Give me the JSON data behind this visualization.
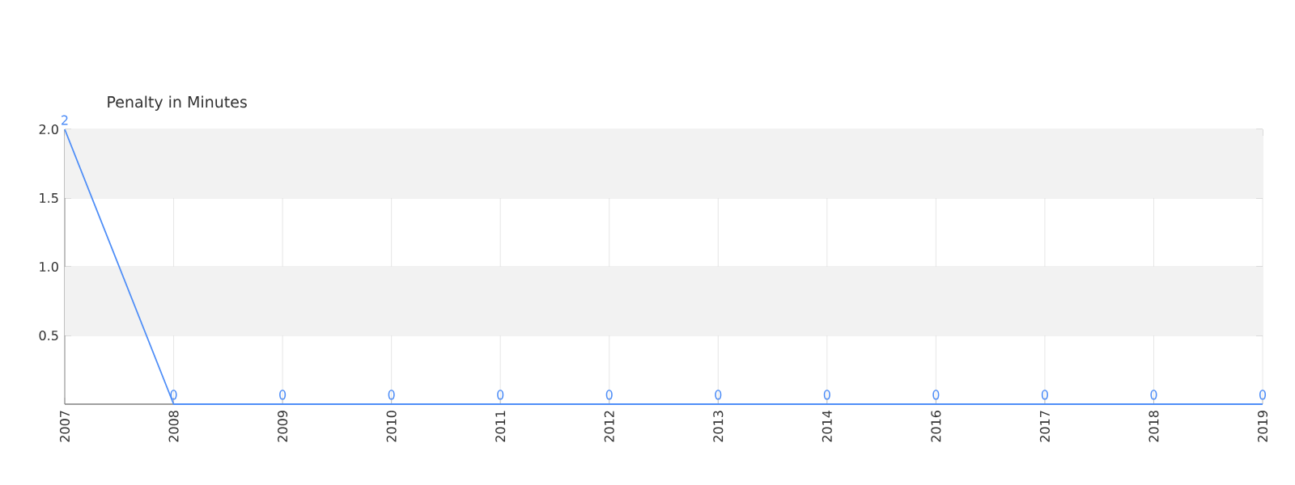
{
  "chart_data": {
    "type": "line",
    "title": "Penalty in Minutes",
    "categories": [
      "2007",
      "2008",
      "2009",
      "2010",
      "2011",
      "2012",
      "2013",
      "2014",
      "2016",
      "2017",
      "2018",
      "2019"
    ],
    "series": [
      {
        "color": "#4f8ef7",
        "values": [
          2,
          0,
          0,
          0,
          0,
          0,
          0,
          0,
          0,
          0,
          0,
          0
        ]
      }
    ],
    "ylim": [
      0,
      2
    ],
    "yticks": [
      0.5,
      {
        "value": 1,
        "label": "1.0"
      },
      1.5,
      {
        "value": 2,
        "label": "2.0"
      }
    ],
    "bands": [
      {
        "axis": "y",
        "from": 0.5,
        "to": 1,
        "color": "#f2f2f2"
      },
      {
        "axis": "y",
        "from": 1.5,
        "to": 2,
        "color": "#f2f2f2"
      }
    ],
    "grid": true,
    "data_labels": true,
    "marker": "none",
    "line_style": "solid",
    "legend": false
  }
}
